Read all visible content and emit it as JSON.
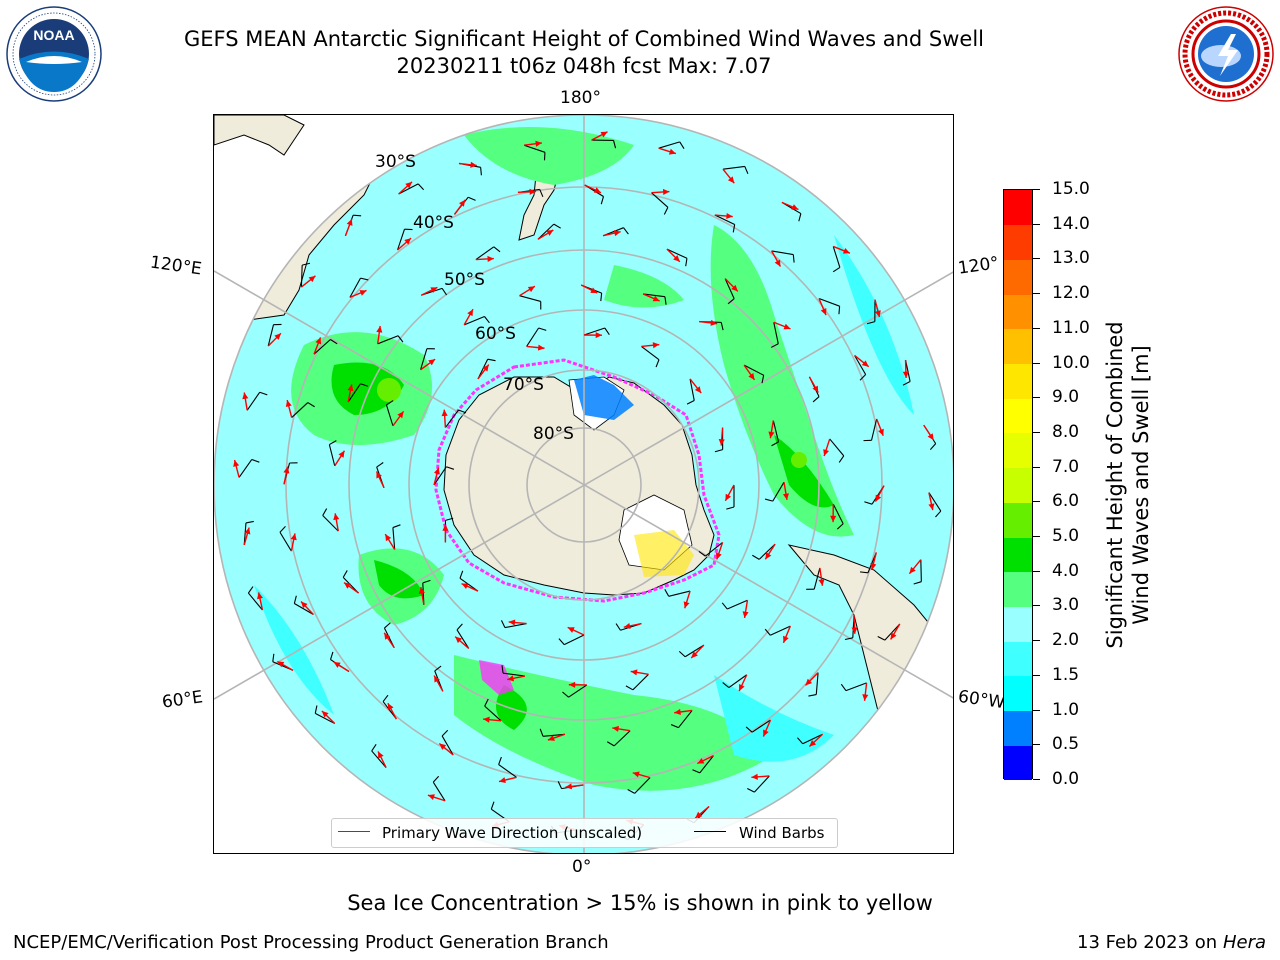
{
  "title_line1": "GEFS MEAN Antarctic Significant Height of Combined Wind Waves and Swell",
  "title_line2": "20230211 t06z 048h fcst   Max: 7.07",
  "logos": {
    "left": {
      "icon": "noaa-logo",
      "text": "NOAA",
      "ring_text": "NATIONAL OCEANIC AND ATMOSPHERIC ADMINISTRATION · U.S. DEPARTMENT OF COMMERCE"
    },
    "right": {
      "icon": "nws-logo",
      "ring_text": "NATIONAL WEATHER SERVICE"
    }
  },
  "map": {
    "projection": "south-polar-stereographic",
    "lon_labels": {
      "top": "180°",
      "bottom": "0°",
      "left_upper": "120°E",
      "left_lower": "60°E",
      "right_upper": "120°",
      "right_lower": "60°W"
    },
    "lat_labels": [
      "30°S",
      "40°S",
      "50°S",
      "60°S",
      "70°S",
      "80°S"
    ],
    "colors": {
      "land": "#efecdc",
      "ocean_base": "#99ffff",
      "coast": "#000000",
      "grid": "#b5b5b5",
      "wave_arrow": "#ff0000",
      "wind_barb": "#000000",
      "sea_ice_edge": "#ff33ff"
    }
  },
  "legend": {
    "wave_label": "Primary Wave Direction (unscaled)",
    "wind_label": "Wind Barbs",
    "wave_color": "#ff0000",
    "wind_color": "#000000"
  },
  "colorbar": {
    "label_line1": "Significant Height of Combined",
    "label_line2": "Wind Waves and Swell [m]",
    "ticks": [
      "0.0",
      "0.5",
      "1.0",
      "1.5",
      "2.0",
      "3.0",
      "4.0",
      "5.0",
      "6.0",
      "7.0",
      "8.0",
      "9.0",
      "10.0",
      "11.0",
      "12.0",
      "13.0",
      "14.0",
      "15.0"
    ],
    "colors": [
      "#0000ff",
      "#0080ff",
      "#00ffff",
      "#40ffff",
      "#99ffff",
      "#55ff80",
      "#00e000",
      "#66ee00",
      "#c8ff00",
      "#e6ff00",
      "#ffff00",
      "#ffe600",
      "#ffc000",
      "#ff9000",
      "#ff6a00",
      "#ff3c00",
      "#ff0000"
    ]
  },
  "ice_note": "Sea Ice Concentration > 15% is shown in pink to yellow",
  "footer_left": "NCEP/EMC/Verification Post Processing Product Generation Branch",
  "footer_right_date": "13 Feb 2023 on",
  "footer_right_machine": "Hera"
}
